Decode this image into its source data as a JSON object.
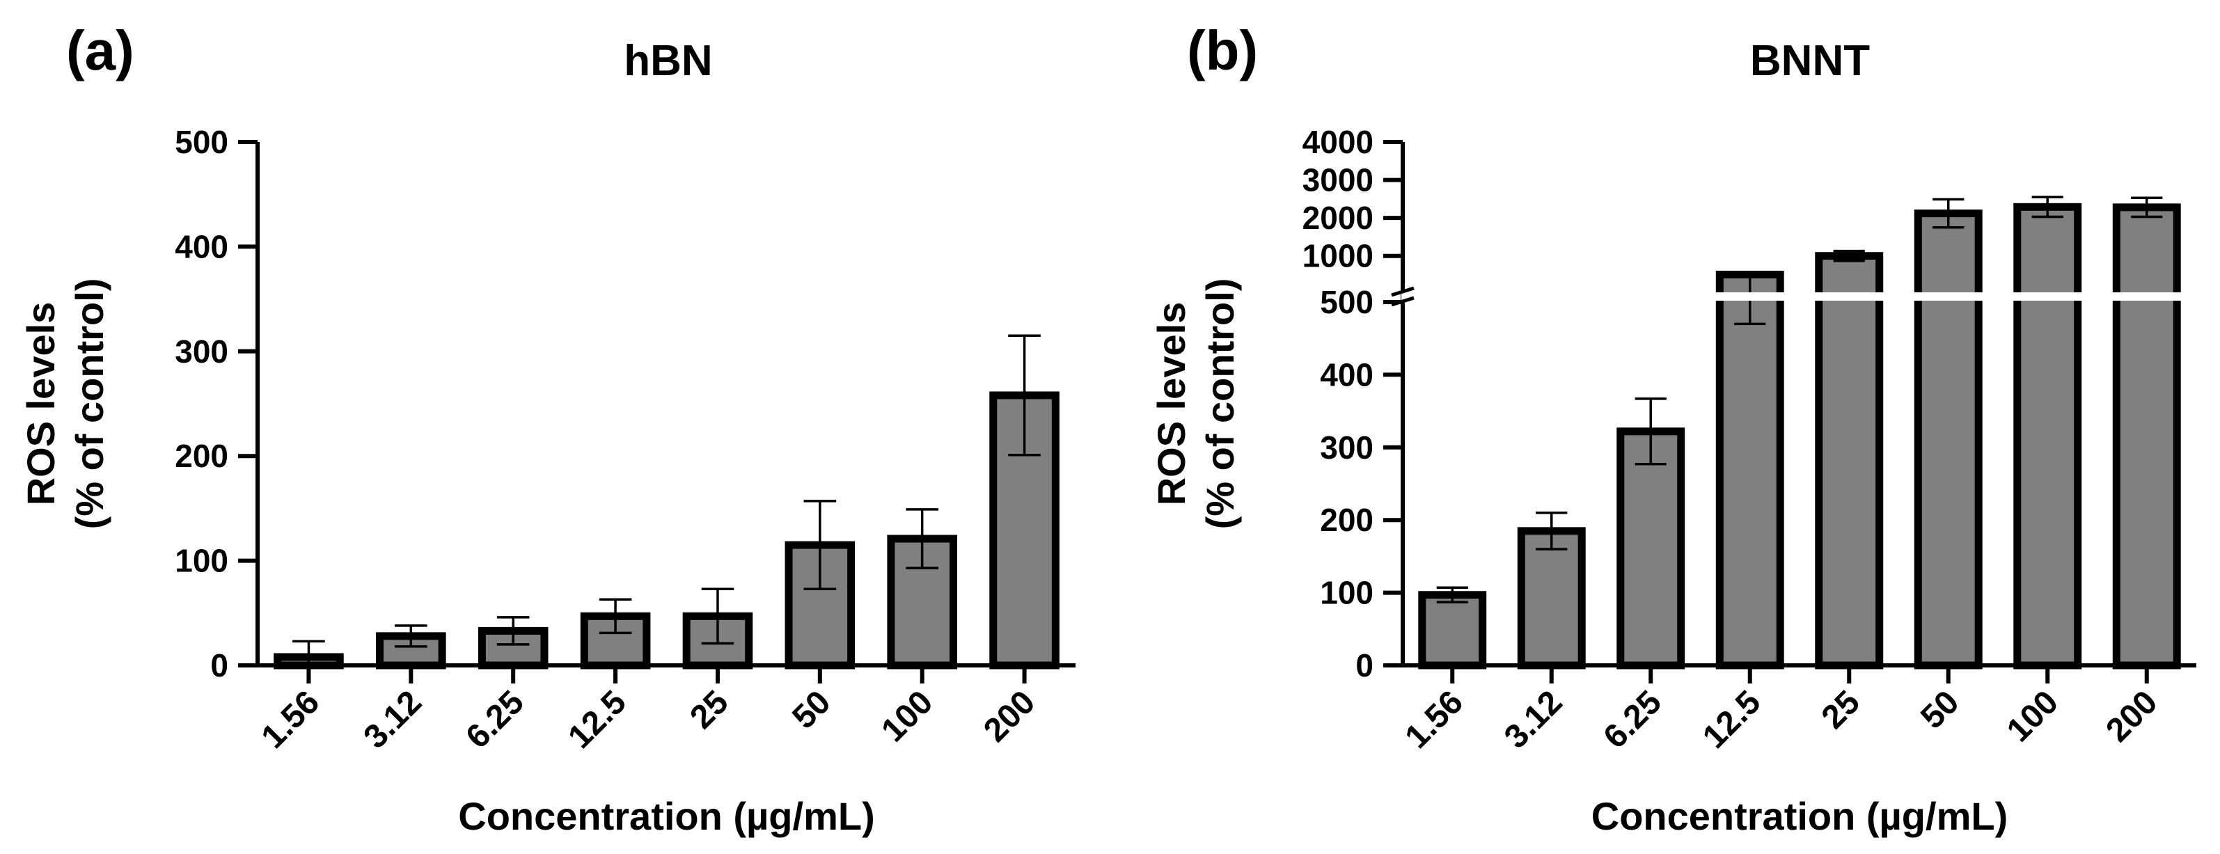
{
  "figure": {
    "panels": [
      {
        "label": "(a)"
      },
      {
        "label": "(b)"
      }
    ]
  },
  "chart_data": [
    {
      "type": "bar",
      "panel_label": "(a)",
      "title": "hBN",
      "xlabel": "Concentration (µg/mL)",
      "ylabel_line1": "ROS levels",
      "ylabel_line2": "(% of control)",
      "categories": [
        "1.56",
        "3.12",
        "6.25",
        "12.5",
        "25",
        "50",
        "100",
        "200"
      ],
      "values": [
        8,
        28,
        33,
        47,
        47,
        115,
        121,
        258
      ],
      "errors": [
        15,
        10,
        13,
        16,
        26,
        42,
        28,
        57
      ],
      "ylim": [
        0,
        500
      ],
      "yticks": [
        0,
        100,
        200,
        300,
        400,
        500
      ],
      "ytick_labels": [
        "0",
        "100",
        "200",
        "300",
        "400",
        "500"
      ],
      "bar_color": "#808080",
      "edge_color": "#000000"
    },
    {
      "type": "bar",
      "panel_label": "(b)",
      "title": "BNNT",
      "xlabel": "Concentration (µg/mL)",
      "ylabel_line1": "ROS levels",
      "ylabel_line2": "(% of control)",
      "categories": [
        "1.56",
        "3.12",
        "6.25",
        "12.5",
        "25",
        "50",
        "100",
        "200"
      ],
      "values": [
        97,
        185,
        322,
        510,
        1000,
        2120,
        2290,
        2280
      ],
      "errors": [
        10,
        25,
        45,
        40,
        130,
        370,
        260,
        250
      ],
      "axis_break": {
        "lower_ylim": [
          0,
          500
        ],
        "upper_ylim": [
          500,
          4000
        ]
      },
      "yticks_lower": [
        0,
        100,
        200,
        300,
        400,
        500
      ],
      "ytick_labels_lower": [
        "0",
        "100",
        "200",
        "300",
        "400",
        "500"
      ],
      "yticks_upper": [
        1000,
        2000,
        3000,
        4000
      ],
      "ytick_labels_upper": [
        "1000",
        "2000",
        "3000",
        "4000"
      ],
      "bar_color": "#808080",
      "edge_color": "#000000"
    }
  ]
}
